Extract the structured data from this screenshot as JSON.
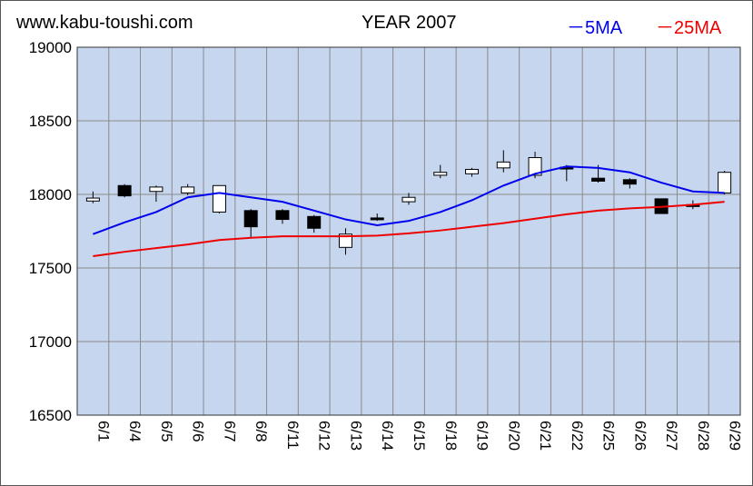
{
  "header": {
    "site": "www.kabu-toushi.com",
    "year_label": "YEAR 2007",
    "legend_5ma": "－5MA",
    "legend_25ma": "－25MA"
  },
  "colors": {
    "plot_bg": "#c6d6ee",
    "grid": "#8a8a8a",
    "ma5": "#0000ee",
    "ma25": "#ee0000",
    "up_candle": "#ffffff",
    "down_candle": "#000000"
  },
  "chart_data": {
    "type": "candlestick",
    "ylim": [
      16500,
      19000
    ],
    "yticks": [
      16500,
      17000,
      17500,
      18000,
      18500,
      19000
    ],
    "categories": [
      "6/1",
      "6/4",
      "6/5",
      "6/6",
      "6/7",
      "6/8",
      "6/11",
      "6/12",
      "6/13",
      "6/14",
      "6/15",
      "6/18",
      "6/19",
      "6/20",
      "6/21",
      "6/22",
      "6/25",
      "6/26",
      "6/27",
      "6/28",
      "6/29"
    ],
    "candles": [
      {
        "open": 17955,
        "high": 18020,
        "low": 17940,
        "close": 17975
      },
      {
        "open": 18060,
        "high": 18070,
        "low": 17980,
        "close": 17990
      },
      {
        "open": 18020,
        "high": 18060,
        "low": 17950,
        "close": 18050
      },
      {
        "open": 18010,
        "high": 18070,
        "low": 17995,
        "close": 18050
      },
      {
        "open": 17880,
        "high": 18060,
        "low": 17870,
        "close": 18060
      },
      {
        "open": 17890,
        "high": 17900,
        "low": 17700,
        "close": 17780
      },
      {
        "open": 17890,
        "high": 17900,
        "low": 17800,
        "close": 17830
      },
      {
        "open": 17850,
        "high": 17860,
        "low": 17740,
        "close": 17770
      },
      {
        "open": 17640,
        "high": 17770,
        "low": 17590,
        "close": 17730
      },
      {
        "open": 17840,
        "high": 17870,
        "low": 17820,
        "close": 17830
      },
      {
        "open": 17950,
        "high": 18010,
        "low": 17930,
        "close": 17980
      },
      {
        "open": 18130,
        "high": 18200,
        "low": 18110,
        "close": 18150
      },
      {
        "open": 18140,
        "high": 18180,
        "low": 18120,
        "close": 18170
      },
      {
        "open": 18180,
        "high": 18300,
        "low": 18150,
        "close": 18220
      },
      {
        "open": 18130,
        "high": 18290,
        "low": 18110,
        "close": 18250
      },
      {
        "open": 18185,
        "high": 18200,
        "low": 18090,
        "close": 18180
      },
      {
        "open": 18110,
        "high": 18200,
        "low": 18080,
        "close": 18090
      },
      {
        "open": 18100,
        "high": 18110,
        "low": 18040,
        "close": 18070
      },
      {
        "open": 17970,
        "high": 17970,
        "low": 17870,
        "close": 17870
      },
      {
        "open": 17930,
        "high": 17960,
        "low": 17900,
        "close": 17925
      },
      {
        "open": 18010,
        "high": 18160,
        "low": 18000,
        "close": 18150
      }
    ],
    "series": [
      {
        "name": "5MA",
        "color": "#0000ee",
        "values": [
          17730,
          17810,
          17880,
          17980,
          18010,
          17980,
          17950,
          17890,
          17830,
          17790,
          17820,
          17880,
          17960,
          18060,
          18140,
          18190,
          18180,
          18150,
          18080,
          18020,
          18010
        ]
      },
      {
        "name": "25MA",
        "color": "#ee0000",
        "values": [
          17580,
          17610,
          17635,
          17660,
          17690,
          17705,
          17715,
          17715,
          17715,
          17720,
          17735,
          17755,
          17780,
          17805,
          17835,
          17865,
          17890,
          17905,
          17915,
          17930,
          17950
        ]
      }
    ]
  }
}
